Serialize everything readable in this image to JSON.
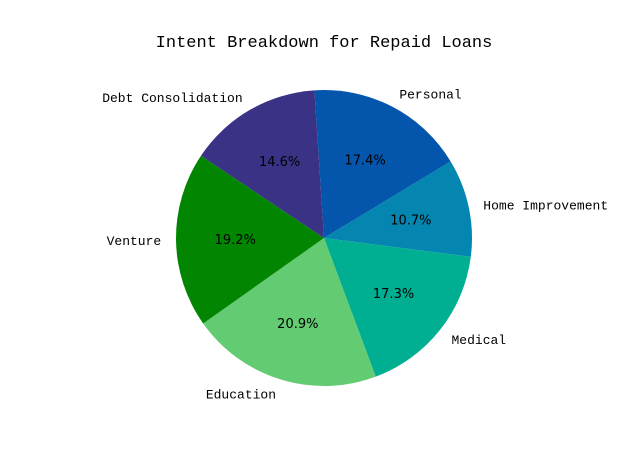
{
  "chart_data": {
    "type": "pie",
    "title": "Intent Breakdown for Repaid Loans",
    "slices": [
      {
        "label": "Personal",
        "value": 17.4,
        "pct_label": "17.4%",
        "color": "#0356ab"
      },
      {
        "label": "Home Improvement",
        "value": 10.7,
        "pct_label": "10.7%",
        "color": "#0586b0"
      },
      {
        "label": "Medical",
        "value": 17.3,
        "pct_label": "17.3%",
        "color": "#00af91"
      },
      {
        "label": "Education",
        "value": 20.9,
        "pct_label": "20.9%",
        "color": "#63cb71"
      },
      {
        "label": "Venture",
        "value": 19.2,
        "pct_label": "19.2%",
        "color": "#028602"
      },
      {
        "label": "Debt Consolidation",
        "value": 14.6,
        "pct_label": "14.6%",
        "color": "#3a3285"
      }
    ],
    "direction": "clockwise",
    "start": "top"
  }
}
